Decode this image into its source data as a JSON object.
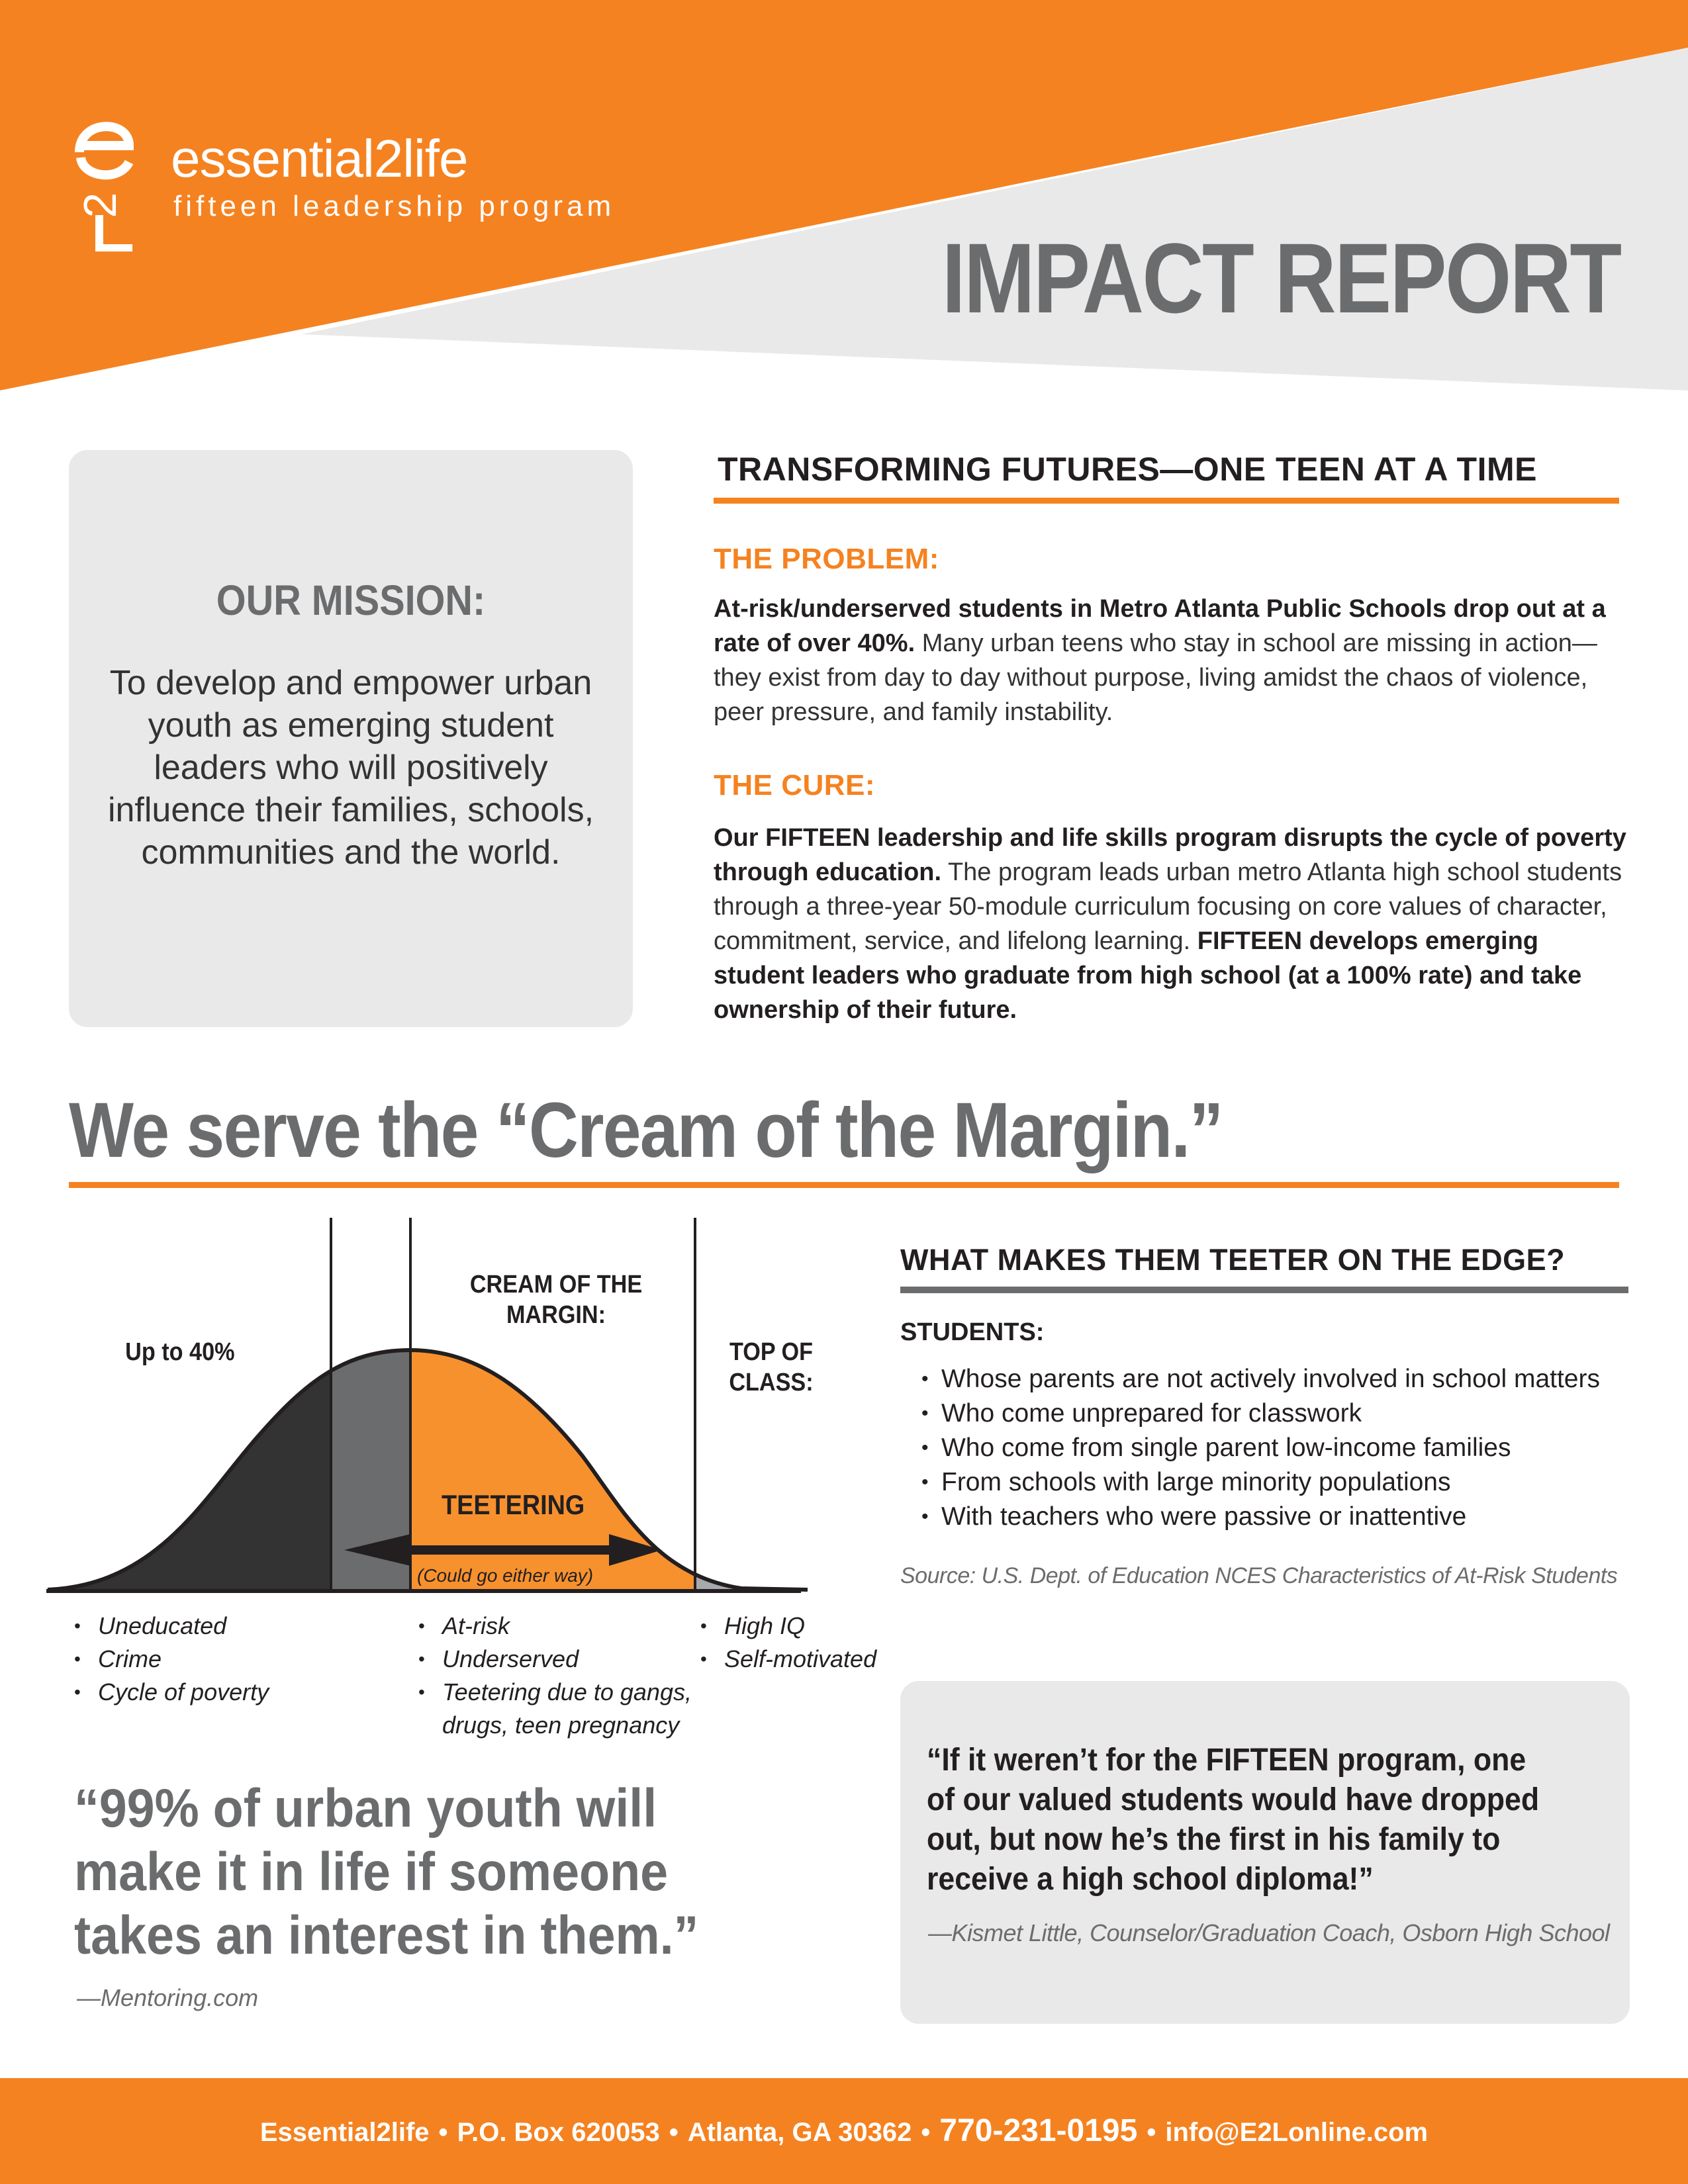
{
  "brand": {
    "name": "essential2life",
    "subtitle": "fifteen leadership program",
    "accent_color": "#f58220",
    "gray_color": "#6b6c6e"
  },
  "header": {
    "title": "IMPACT REPORT"
  },
  "mission": {
    "title": "OUR MISSION:",
    "text": "To develop and empower urban youth as emerging student leaders who will positively influence their families, schools, communities and the world."
  },
  "transforming": {
    "heading": "TRANSFORMING FUTURES—ONE TEEN AT A TIME",
    "problem_title": "THE PROBLEM:",
    "problem_bold": "At-risk/underserved students in Metro Atlanta Public Schools drop out at a rate of over 40%.",
    "problem_text": " Many urban teens who stay in school are missing in action— they exist from day to day without purpose, living amidst the chaos of violence, peer pressure, and family instability.",
    "cure_title": "THE CURE:",
    "cure_bold": "Our FIFTEEN leadership and life skills program disrupts the cycle of poverty through education.",
    "cure_text": " The program leads urban metro Atlanta high school students through a three-year 50-module curriculum focusing on core values of character, commitment, service, and lifelong learning. ",
    "cure_bold_end": "FIFTEEN develops emerging student leaders who graduate from high school (at a 100% rate) and take ownership of their future."
  },
  "cream": {
    "headline": "We serve the “Cream of the Margin.”",
    "label_left": "Up to 40%",
    "label_center": "CREAM OF THE MARGIN:",
    "label_right": "TOP OF CLASS:",
    "teetering": "TEETERING",
    "either_way": "(Could go either way)",
    "left_bullets": [
      "Uneducated",
      "Crime",
      "Cycle of poverty"
    ],
    "center_bullets": [
      "At-risk",
      "Underserved",
      "Teetering due to gangs, drugs, teen pregnancy"
    ],
    "right_bullets": [
      "High IQ",
      "Self-motivated"
    ]
  },
  "teeter": {
    "heading": "WHAT MAKES THEM TEETER ON THE EDGE?",
    "students_label": "STUDENTS:",
    "items": [
      "Whose parents are not actively involved in school matters",
      "Who come unprepared for classwork",
      "Who come from single parent low-income families",
      "From schools with large minority populations",
      "With teachers who were passive or inattentive"
    ],
    "source": "Source: U.S. Dept. of Education NCES Characteristics of At-Risk Students"
  },
  "quote_left": {
    "text": "“99% of urban youth will make it in life if someone takes an interest in them.”",
    "source": "—Mentoring.com"
  },
  "quote_right": {
    "text": "“If it weren’t for the FIFTEEN program, one of our valued students would have dropped out, but now he’s the first in his family to receive a high school diploma!”",
    "source": "—Kismet Little, Counselor/Graduation Coach, Osborn High School"
  },
  "footer": {
    "org": "Essential2life",
    "po_box": "P.O. Box 620053",
    "city": "Atlanta, GA 30362",
    "phone": "770-231-0195",
    "email": "info@E2Lonline.com"
  }
}
